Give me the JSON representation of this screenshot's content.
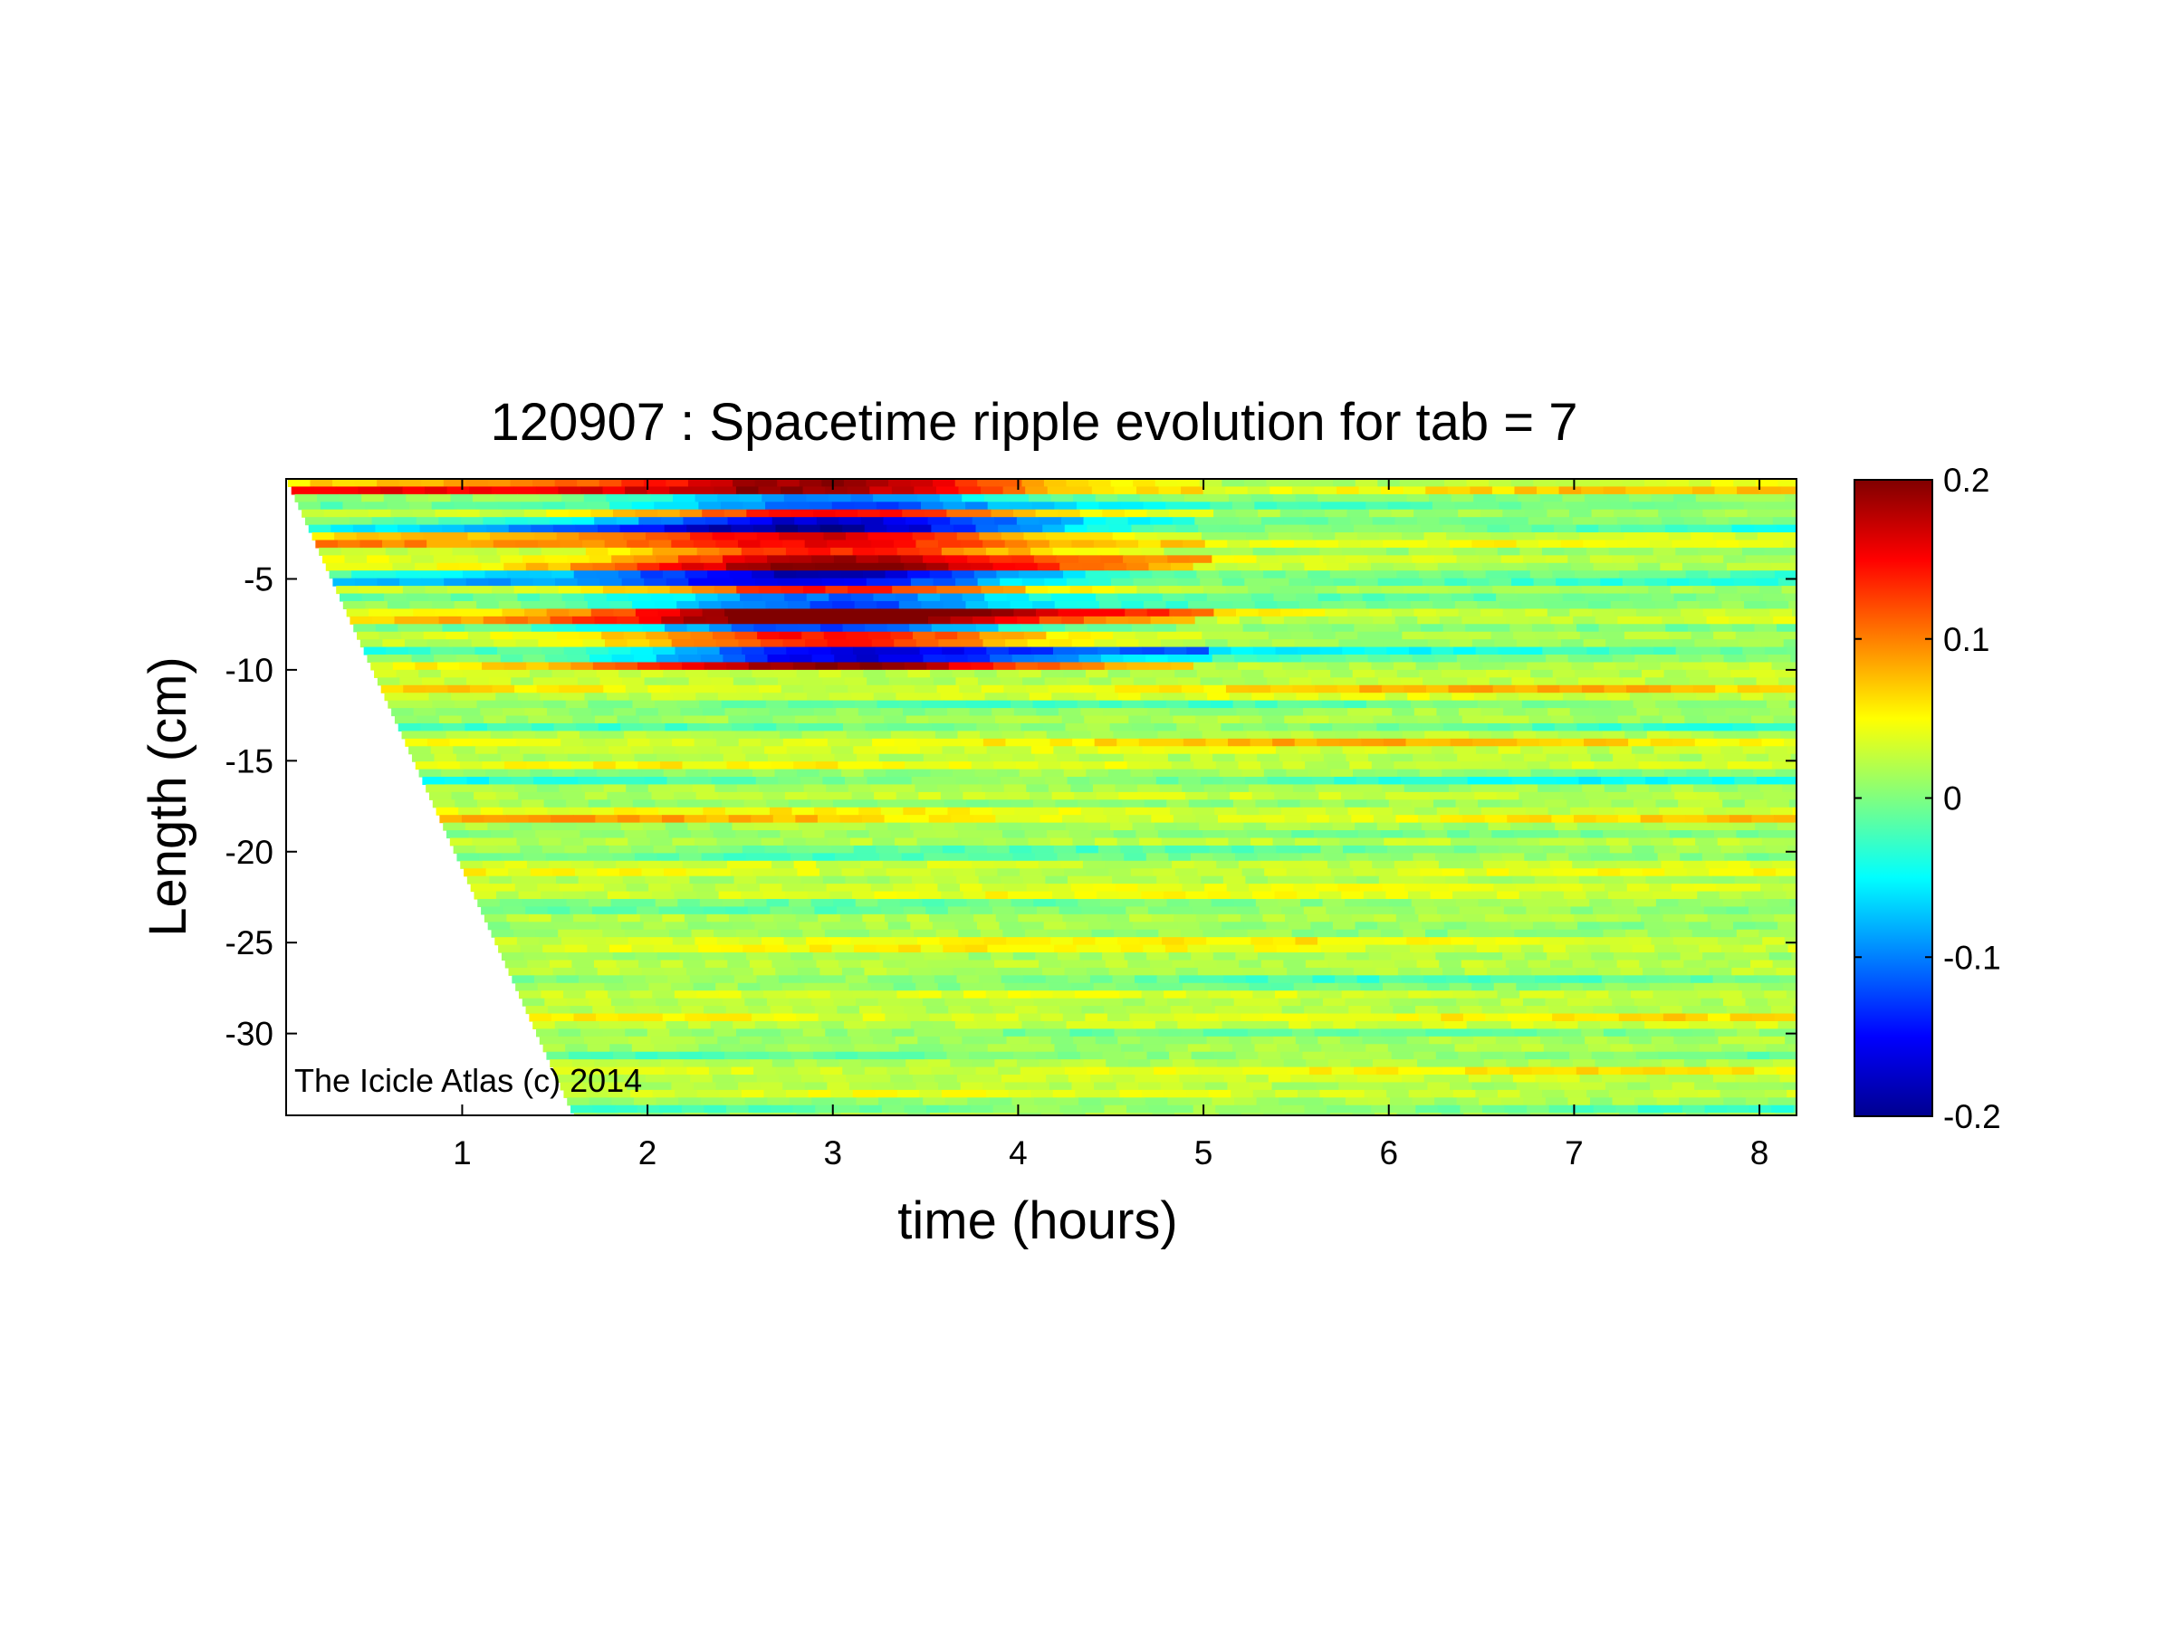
{
  "chart_data": {
    "type": "heatmap",
    "title": "120907 : Spacetime ripple evolution for tab = 7",
    "xlabel": "time (hours)",
    "ylabel": "Length (cm)",
    "xlim": [
      0.05,
      8.2
    ],
    "ylim": [
      -34.5,
      0.5
    ],
    "x_ticks": [
      1,
      2,
      3,
      4,
      5,
      6,
      7,
      8
    ],
    "y_ticks": [
      -5,
      -10,
      -15,
      -20,
      -25,
      -30
    ],
    "colorbar": {
      "colormap": "jet",
      "range": [
        -0.2,
        0.2
      ],
      "ticks": [
        0.2,
        0.1,
        0,
        -0.1,
        -0.2
      ],
      "tick_labels": [
        "0.2",
        "0.1",
        "0",
        "-0.1",
        "-0.2"
      ]
    },
    "annotation": "The Icicle Atlas (c) 2014",
    "data_start_front": [
      {
        "length": 0.5,
        "time": 0.05
      },
      {
        "length": -34.5,
        "time": 1.6
      }
    ],
    "grid": false,
    "background_value": 0.02
  }
}
